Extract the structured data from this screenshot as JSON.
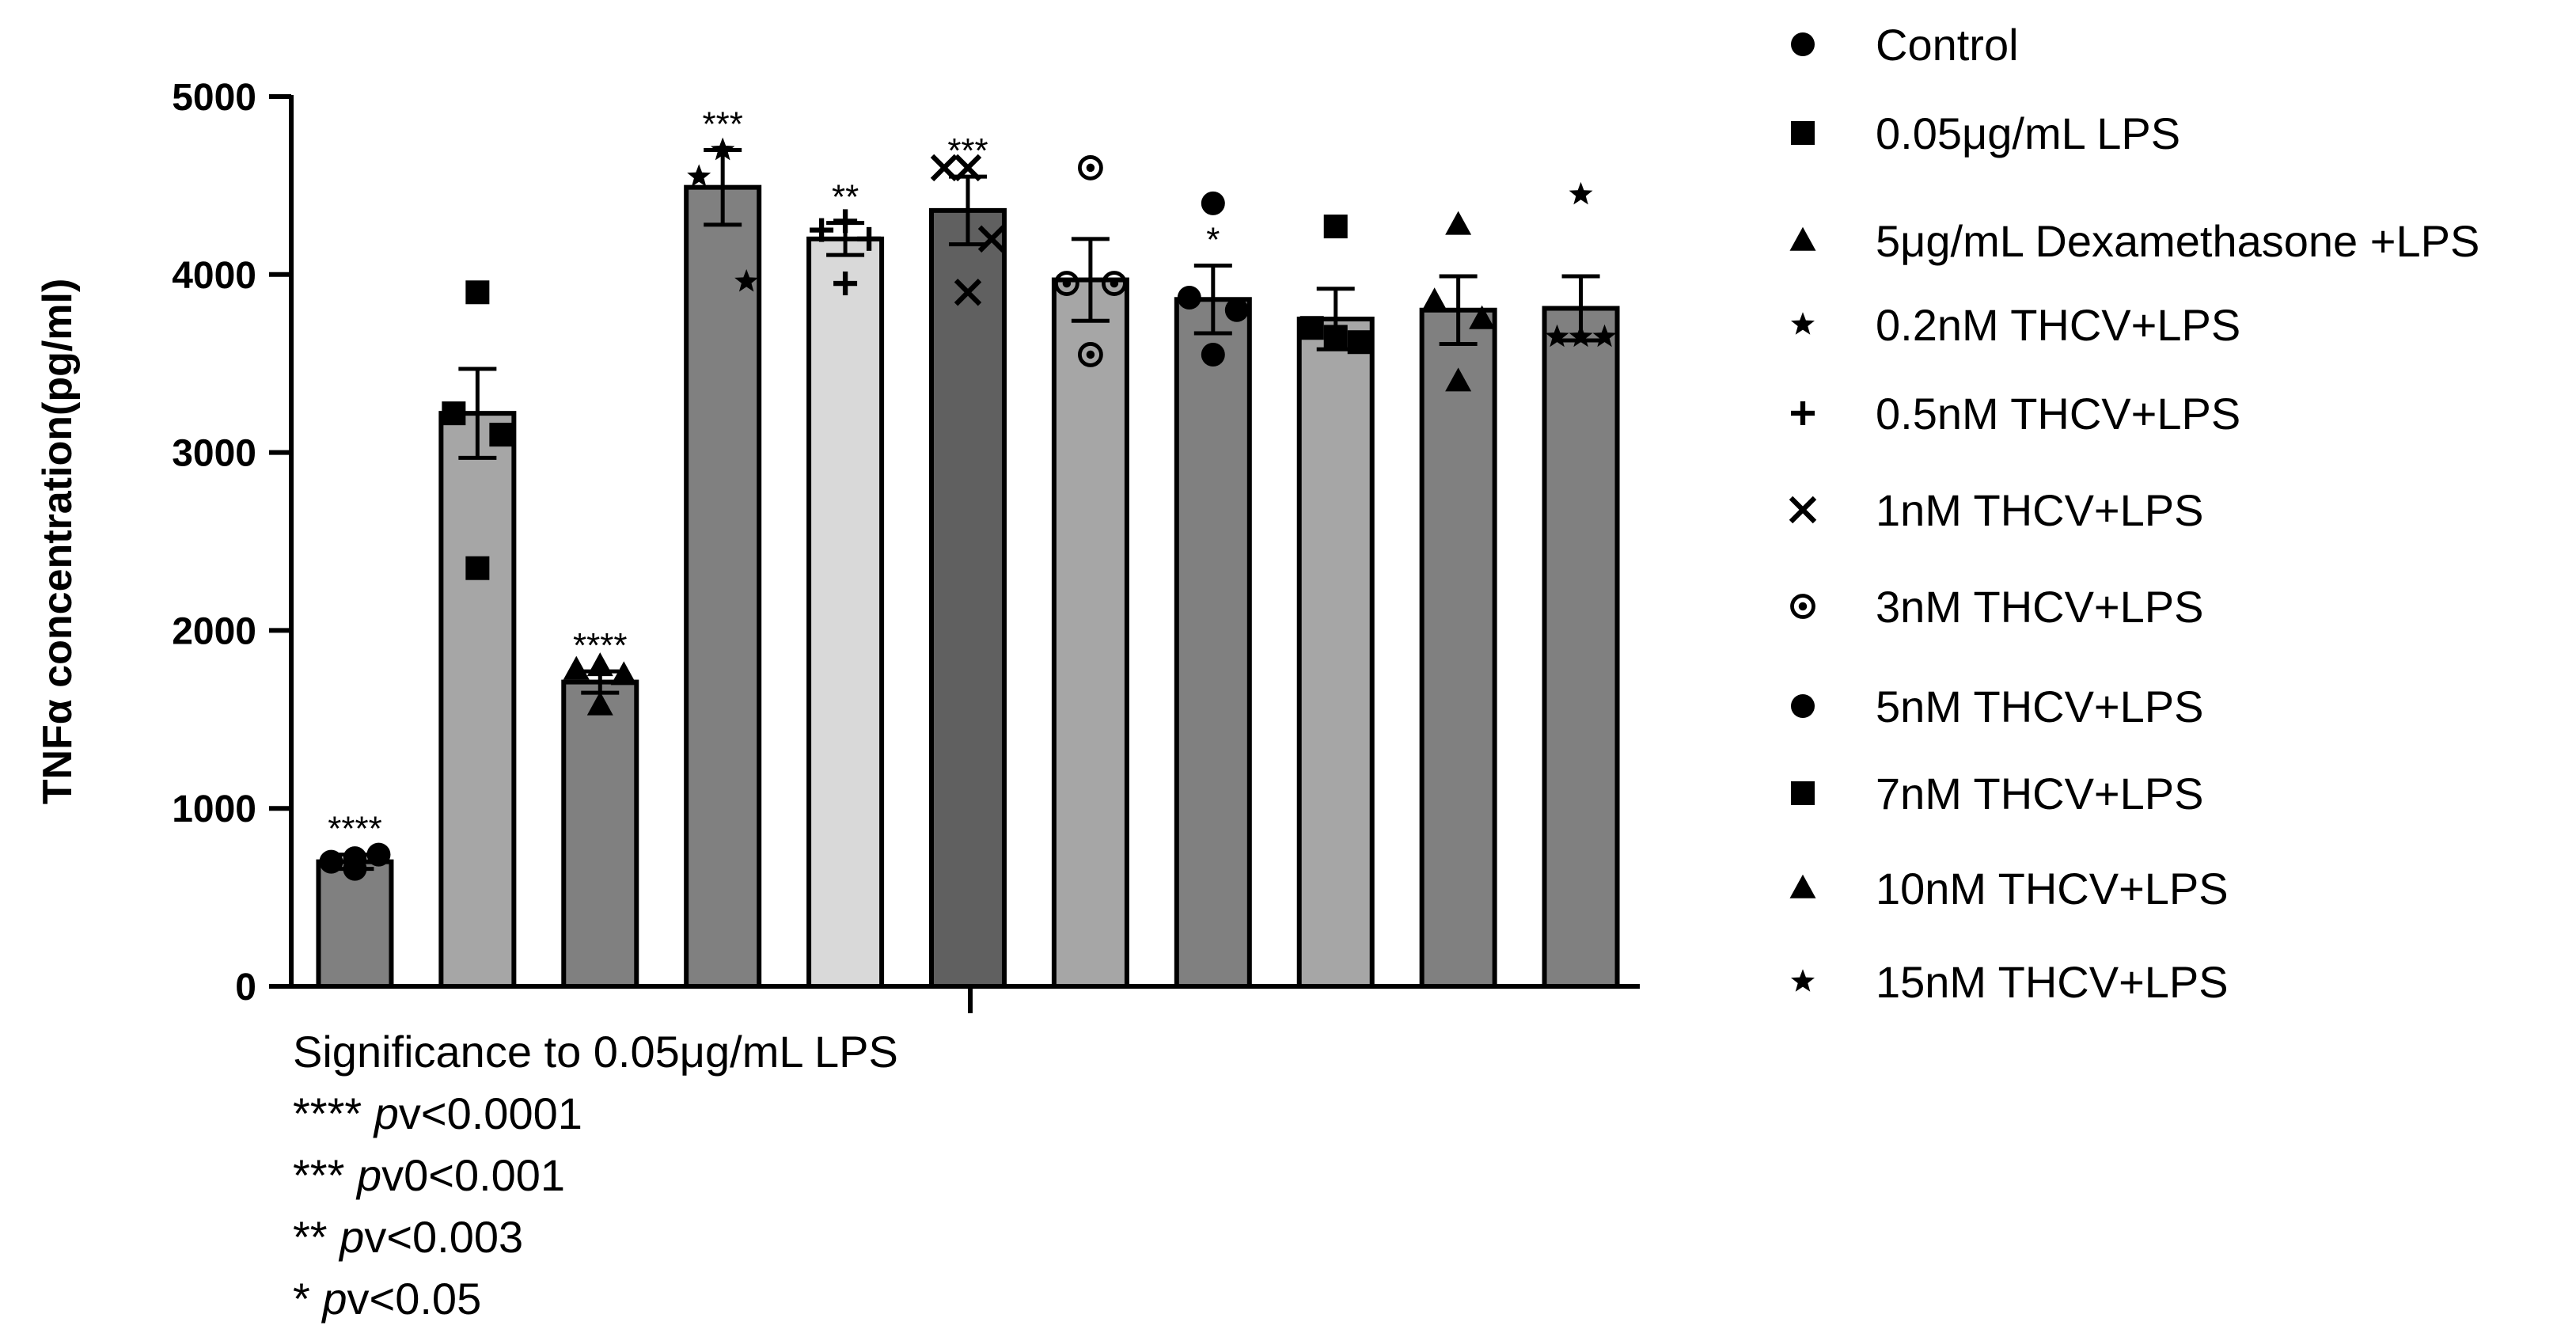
{
  "chart_data": {
    "type": "bar",
    "title": "",
    "xlabel": "",
    "ylabel": "TNFα concentration(pg/ml)",
    "ylim": [
      0,
      5000
    ],
    "yticks": [
      0,
      1000,
      2000,
      3000,
      4000,
      5000
    ],
    "categories": [
      "Control",
      "0.05μg/mL LPS",
      "5μg/mL Dexamethasone +LPS",
      "0.2nM THCV+LPS",
      "0.5nM THCV+LPS",
      "1nM THCV+LPS",
      "3nM THCV+LPS",
      "5nM THCV+LPS",
      "7nM THCV+LPS",
      "10nM THCV+LPS",
      "15nM THCV+LPS"
    ],
    "values": [
      700,
      3220,
      1710,
      4490,
      4200,
      4360,
      3970,
      3860,
      3750,
      3800,
      3810
    ],
    "error": [
      40,
      250,
      60,
      210,
      90,
      190,
      230,
      190,
      170,
      190,
      180
    ],
    "points": [
      [
        660,
        700,
        740,
        720
      ],
      [
        3900,
        3220,
        3100,
        2350
      ],
      [
        1800,
        1780,
        1750,
        1580
      ],
      [
        4700,
        4550,
        3960,
        4700
      ],
      [
        4300,
        4250,
        4200,
        3950
      ],
      [
        4600,
        4600,
        4200,
        3900
      ],
      [
        4600,
        3950,
        3950,
        3550
      ],
      [
        4400,
        3870,
        3800,
        3550
      ],
      [
        4270,
        3700,
        3620,
        3650
      ],
      [
        4280,
        3850,
        3750,
        3400
      ],
      [
        4450,
        3650,
        3650,
        3650
      ]
    ],
    "markers": [
      "circle",
      "square",
      "triangle",
      "star",
      "plus",
      "cross",
      "bullseye",
      "circle",
      "square",
      "triangle",
      "star"
    ],
    "colors": [
      "#808080",
      "#a6a6a6",
      "#808080",
      "#808080",
      "#d9d9d9",
      "#606060",
      "#a6a6a6",
      "#808080",
      "#a6a6a6",
      "#808080",
      "#808080"
    ],
    "significance": [
      "****",
      "",
      "****",
      "***",
      "**",
      "***",
      "",
      "*",
      "",
      "",
      ""
    ],
    "legend": [
      {
        "marker": "circle",
        "label": "Control"
      },
      {
        "marker": "square",
        "label": "0.05μg/mL LPS"
      },
      {
        "marker": "triangle",
        "label": "5μg/mL Dexamethasone +LPS"
      },
      {
        "marker": "star",
        "label": "0.2nM THCV+LPS"
      },
      {
        "marker": "plus",
        "label": "0.5nM THCV+LPS"
      },
      {
        "marker": "cross",
        "label": "1nM THCV+LPS"
      },
      {
        "marker": "bullseye",
        "label": "3nM THCV+LPS"
      },
      {
        "marker": "circle",
        "label": "5nM THCV+LPS"
      },
      {
        "marker": "square",
        "label": "7nM THCV+LPS"
      },
      {
        "marker": "triangle",
        "label": "10nM THCV+LPS"
      },
      {
        "marker": "star",
        "label": "15nM THCV+LPS"
      }
    ],
    "legend_position": "right"
  },
  "notes": {
    "heading": "Significance to 0.05μg/mL LPS",
    "lines": [
      {
        "stars": "****",
        "p": "p",
        "rest": "v<0.0001"
      },
      {
        "stars": "***",
        "p": "p",
        "rest": "v0<0.001"
      },
      {
        "stars": "**",
        "p": "p",
        "rest": "v<0.003"
      },
      {
        "stars": "*",
        "p": "p",
        "rest": "v<0.05"
      }
    ]
  }
}
